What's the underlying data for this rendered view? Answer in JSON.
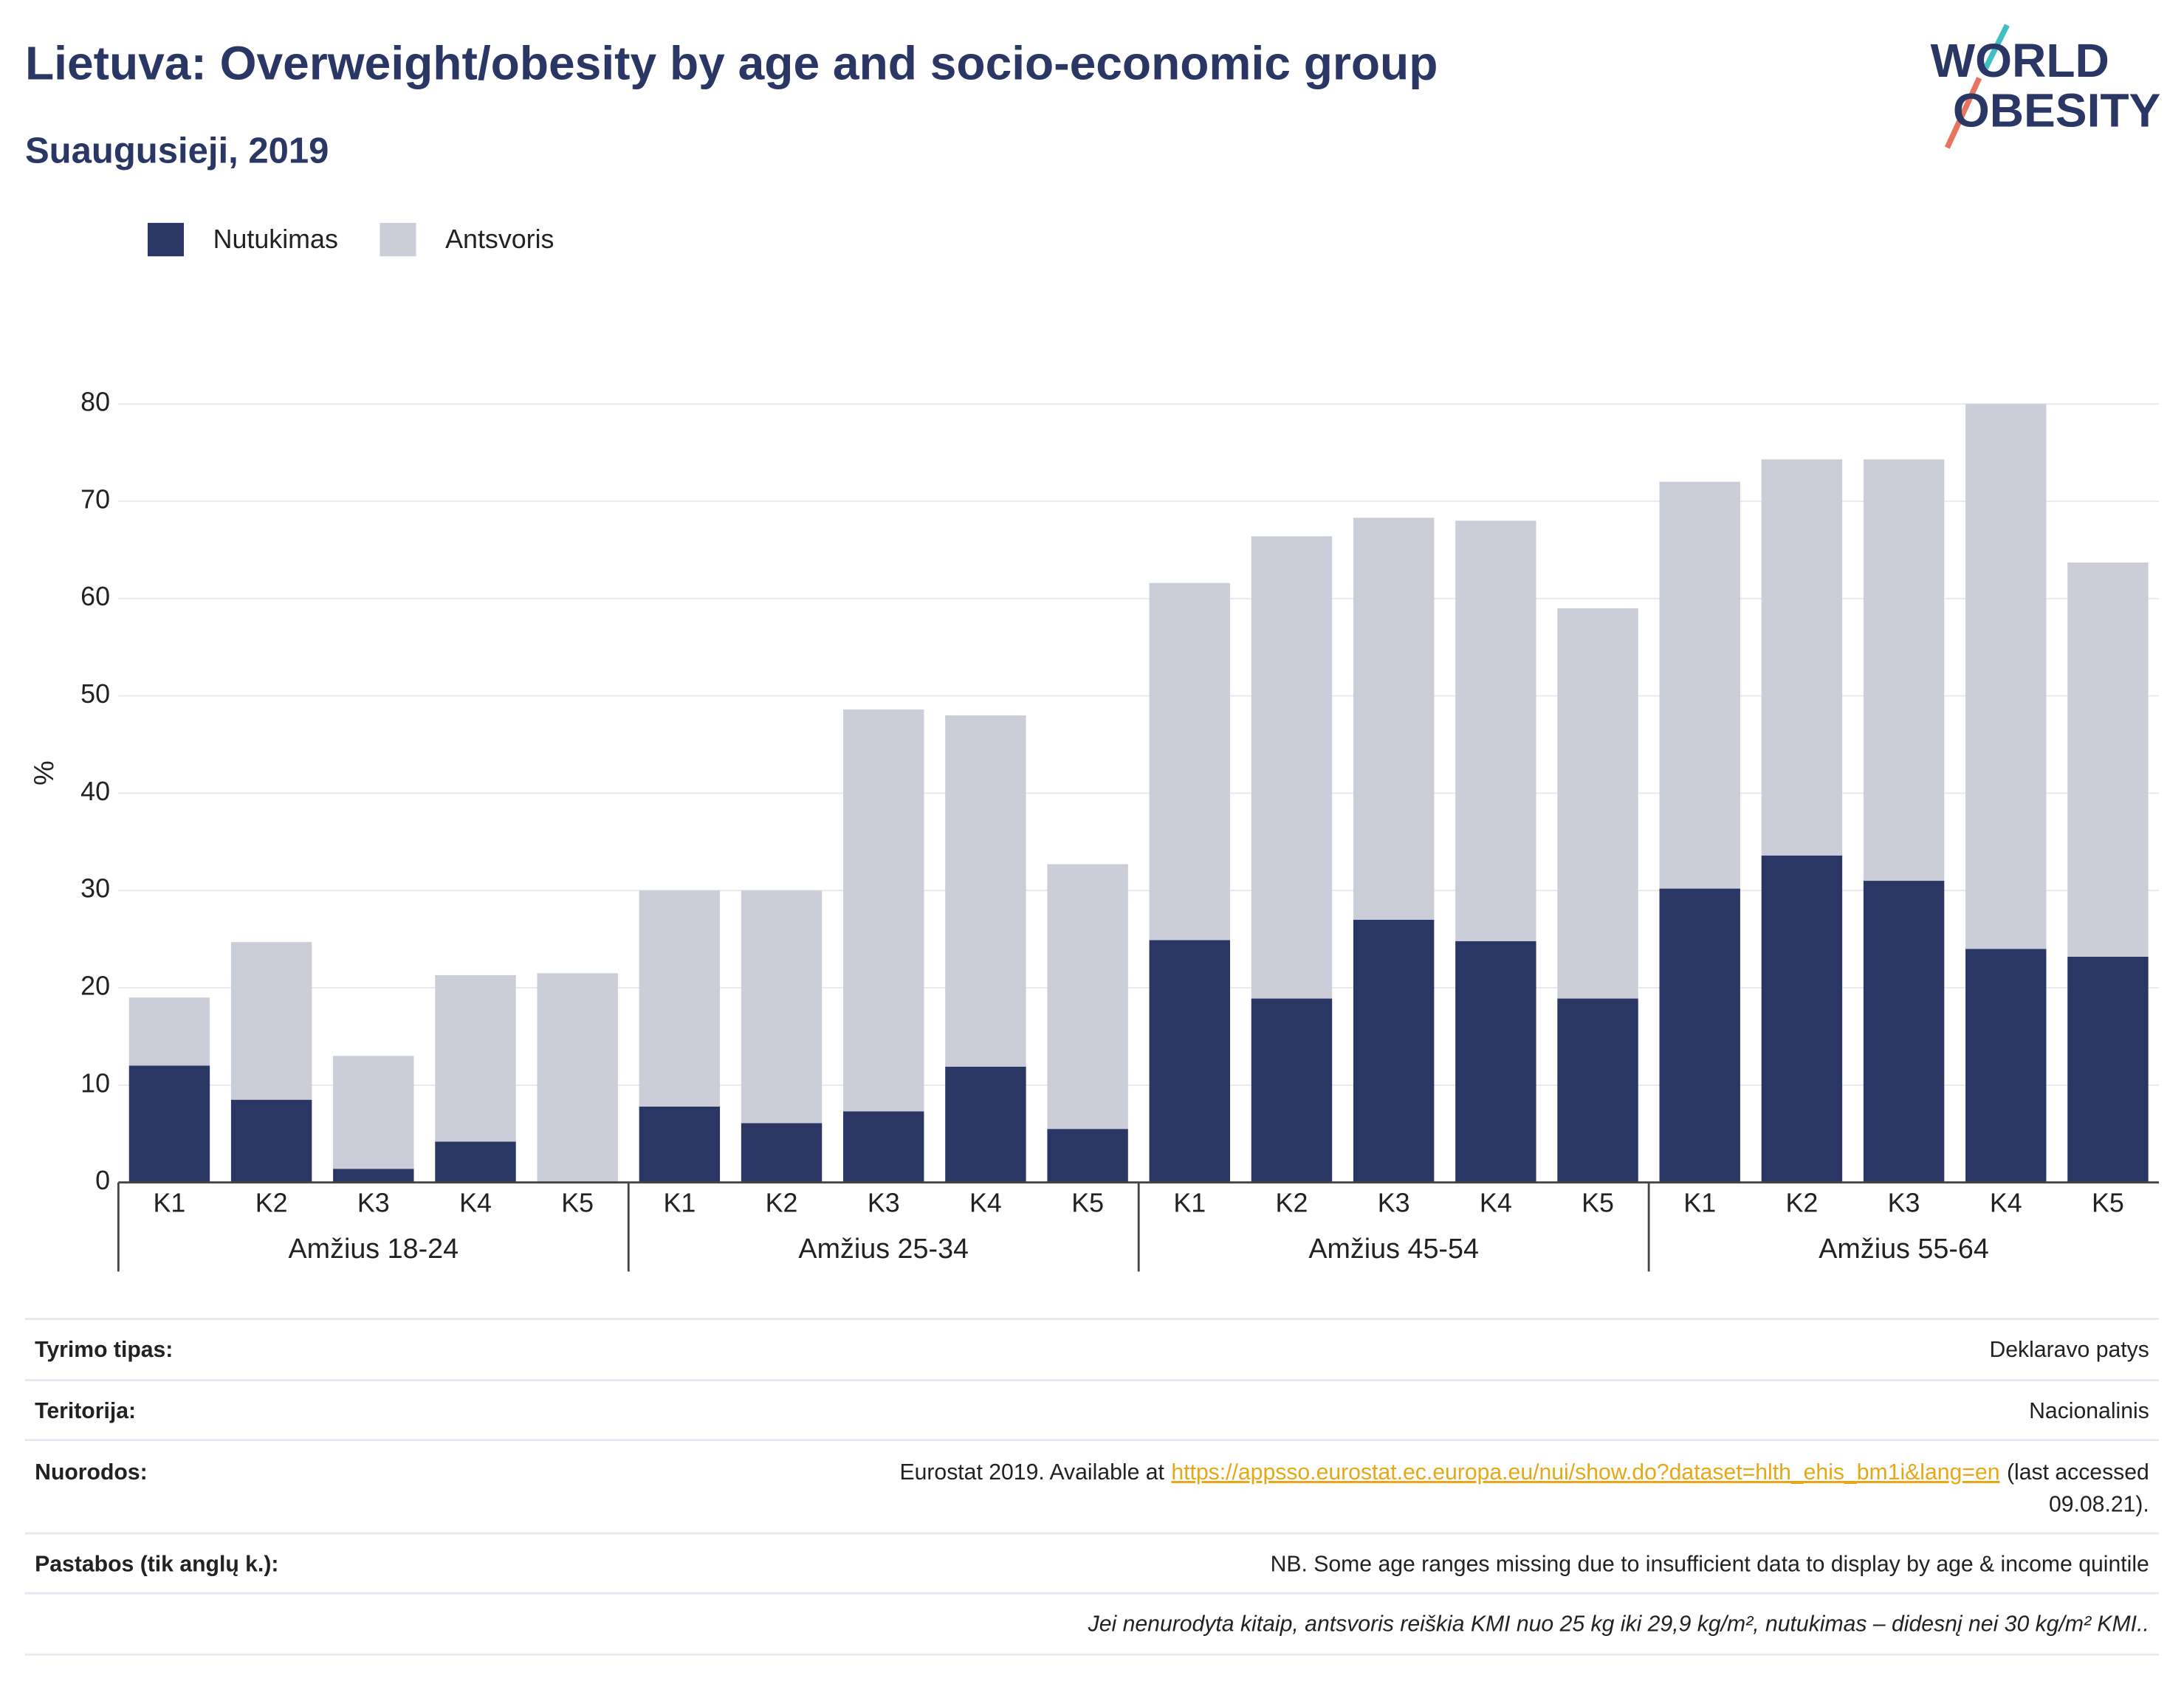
{
  "chart_data": {
    "type": "stacked_bar",
    "title": "Lietuva: Overweight/obesity by age and socio-economic group",
    "subtitle": "Suaugusieji, 2019",
    "ylabel": "%",
    "groups": [
      "Amžius 18-24",
      "Amžius 25-34",
      "Amžius 45-54",
      "Amžius 55-64"
    ],
    "categories": [
      "K1",
      "K2",
      "K3",
      "K4",
      "K5",
      "K1",
      "K2",
      "K3",
      "K4",
      "K5",
      "K1",
      "K2",
      "K3",
      "K4",
      "K5",
      "K1",
      "K2",
      "K3",
      "K4",
      "K5"
    ],
    "series": [
      {
        "name": "Nutukimas",
        "color": "#2a3663",
        "values": [
          12,
          8.5,
          1.4,
          4.2,
          0,
          7.8,
          6.1,
          7.3,
          11.9,
          5.5,
          24.9,
          18.9,
          27,
          24.8,
          18.9,
          30.2,
          33.6,
          31,
          24,
          23.2
        ]
      },
      {
        "name": "Antsvoris",
        "color": "#cbcdd9",
        "values": [
          7,
          16.2,
          11.6,
          17.1,
          21.5,
          22.2,
          23.9,
          41.3,
          36.1,
          27.2,
          36.7,
          47.5,
          41.3,
          43.2,
          40.1,
          41.8,
          40.7,
          43.3,
          56,
          40.5
        ]
      }
    ],
    "ylim": [
      0,
      80
    ],
    "yticks": [
      0,
      10,
      20,
      30,
      40,
      50,
      60,
      70,
      80
    ],
    "grid": true
  },
  "logo": [
    "WORLD",
    "OBESITY"
  ],
  "table": {
    "rows": [
      [
        "Tyrimo tipas:",
        "Deklaravo patys"
      ],
      [
        "Teritorija:",
        "Nacionalinis"
      ],
      [
        "Nuorodos:",
        [
          "Eurostat 2019. Available at",
          "https://appsso.eurostat.ec.europa.eu/nui/show.do?dataset=hlth_ehis_bm1i&lang=en",
          "(last accessed",
          "09.08.21)."
        ]
      ],
      [
        "Pastabos (tik anglų k.):",
        "NB. Some age ranges missing due to insufficient data to display by age & income quintile"
      ]
    ],
    "note": "Jei nenurodyta kitaip, antsvoris reiškia KMI nuo 25 kg iki 29,9 kg/m², nutukimas – didesnį nei 30 kg/m² KMI.."
  }
}
